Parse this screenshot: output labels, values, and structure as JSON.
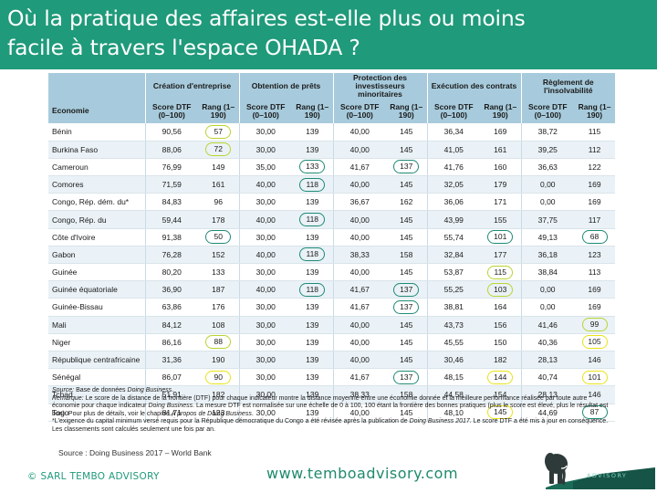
{
  "header": {
    "title_line1": "Où la pratique des affaires est-elle plus ou moins",
    "title_line2": "facile à travers l'espace OHADA ?"
  },
  "table": {
    "groups": [
      "Création d'entreprise",
      "Obtention de prêts",
      "Protection des investisseurs minoritaires",
      "Exécution des contrats",
      "Règlement de l'insolvabilité"
    ],
    "economy_label": "Economie",
    "score_label": "Score DTF (0–100)",
    "rank_label": "Rang (1–190)",
    "rows": [
      {
        "name": "Bénin",
        "cells": [
          [
            "90,56",
            ""
          ],
          [
            "57",
            "lime"
          ],
          [
            "30,00",
            ""
          ],
          [
            "139",
            ""
          ],
          [
            "40,00",
            ""
          ],
          [
            "145",
            ""
          ],
          [
            "36,34",
            ""
          ],
          [
            "169",
            ""
          ],
          [
            "38,72",
            ""
          ],
          [
            "115",
            ""
          ]
        ]
      },
      {
        "name": "Burkina Faso",
        "cells": [
          [
            "88,06",
            ""
          ],
          [
            "72",
            "lime"
          ],
          [
            "30,00",
            ""
          ],
          [
            "139",
            ""
          ],
          [
            "40,00",
            ""
          ],
          [
            "145",
            ""
          ],
          [
            "41,05",
            ""
          ],
          [
            "161",
            ""
          ],
          [
            "39,25",
            ""
          ],
          [
            "112",
            ""
          ]
        ]
      },
      {
        "name": "Cameroun",
        "cells": [
          [
            "76,99",
            ""
          ],
          [
            "149",
            ""
          ],
          [
            "35,00",
            ""
          ],
          [
            "133",
            "teal"
          ],
          [
            "41,67",
            ""
          ],
          [
            "137",
            "teal"
          ],
          [
            "41,76",
            ""
          ],
          [
            "160",
            ""
          ],
          [
            "36,63",
            ""
          ],
          [
            "122",
            ""
          ]
        ]
      },
      {
        "name": "Comores",
        "cells": [
          [
            "71,59",
            ""
          ],
          [
            "161",
            ""
          ],
          [
            "40,00",
            ""
          ],
          [
            "118",
            "teal"
          ],
          [
            "40,00",
            ""
          ],
          [
            "145",
            ""
          ],
          [
            "32,05",
            ""
          ],
          [
            "179",
            ""
          ],
          [
            "0,00",
            ""
          ],
          [
            "169",
            ""
          ]
        ]
      },
      {
        "name": "Congo, Rép. dém. du*",
        "cells": [
          [
            "84,83",
            ""
          ],
          [
            "96",
            ""
          ],
          [
            "30,00",
            ""
          ],
          [
            "139",
            ""
          ],
          [
            "36,67",
            ""
          ],
          [
            "162",
            ""
          ],
          [
            "36,06",
            ""
          ],
          [
            "171",
            ""
          ],
          [
            "0,00",
            ""
          ],
          [
            "169",
            ""
          ]
        ]
      },
      {
        "name": "Congo, Rép. du",
        "cells": [
          [
            "59,44",
            ""
          ],
          [
            "178",
            ""
          ],
          [
            "40,00",
            ""
          ],
          [
            "118",
            "teal"
          ],
          [
            "40,00",
            ""
          ],
          [
            "145",
            ""
          ],
          [
            "43,99",
            ""
          ],
          [
            "155",
            ""
          ],
          [
            "37,75",
            ""
          ],
          [
            "117",
            ""
          ]
        ]
      },
      {
        "name": "Côte d'Ivoire",
        "cells": [
          [
            "91,38",
            ""
          ],
          [
            "50",
            "teal"
          ],
          [
            "30,00",
            ""
          ],
          [
            "139",
            ""
          ],
          [
            "40,00",
            ""
          ],
          [
            "145",
            ""
          ],
          [
            "55,74",
            ""
          ],
          [
            "101",
            "teal"
          ],
          [
            "49,13",
            ""
          ],
          [
            "68",
            "teal"
          ]
        ]
      },
      {
        "name": "Gabon",
        "cells": [
          [
            "76,28",
            ""
          ],
          [
            "152",
            ""
          ],
          [
            "40,00",
            ""
          ],
          [
            "118",
            "teal"
          ],
          [
            "38,33",
            ""
          ],
          [
            "158",
            ""
          ],
          [
            "32,84",
            ""
          ],
          [
            "177",
            ""
          ],
          [
            "36,18",
            ""
          ],
          [
            "123",
            ""
          ]
        ]
      },
      {
        "name": "Guinée",
        "cells": [
          [
            "80,20",
            ""
          ],
          [
            "133",
            ""
          ],
          [
            "30,00",
            ""
          ],
          [
            "139",
            ""
          ],
          [
            "40,00",
            ""
          ],
          [
            "145",
            ""
          ],
          [
            "53,87",
            ""
          ],
          [
            "115",
            "lime"
          ],
          [
            "38,84",
            ""
          ],
          [
            "113",
            ""
          ]
        ]
      },
      {
        "name": "Guinée équatoriale",
        "cells": [
          [
            "36,90",
            ""
          ],
          [
            "187",
            ""
          ],
          [
            "40,00",
            ""
          ],
          [
            "118",
            "teal"
          ],
          [
            "41,67",
            ""
          ],
          [
            "137",
            "teal"
          ],
          [
            "55,25",
            ""
          ],
          [
            "103",
            "lime"
          ],
          [
            "0,00",
            ""
          ],
          [
            "169",
            ""
          ]
        ]
      },
      {
        "name": "Guinée-Bissau",
        "cells": [
          [
            "63,86",
            ""
          ],
          [
            "176",
            ""
          ],
          [
            "30,00",
            ""
          ],
          [
            "139",
            ""
          ],
          [
            "41,67",
            ""
          ],
          [
            "137",
            "teal"
          ],
          [
            "38,81",
            ""
          ],
          [
            "164",
            ""
          ],
          [
            "0,00",
            ""
          ],
          [
            "169",
            ""
          ]
        ]
      },
      {
        "name": "Mali",
        "cells": [
          [
            "84,12",
            ""
          ],
          [
            "108",
            ""
          ],
          [
            "30,00",
            ""
          ],
          [
            "139",
            ""
          ],
          [
            "40,00",
            ""
          ],
          [
            "145",
            ""
          ],
          [
            "43,73",
            ""
          ],
          [
            "156",
            ""
          ],
          [
            "41,46",
            ""
          ],
          [
            "99",
            "lime"
          ]
        ]
      },
      {
        "name": "Niger",
        "cells": [
          [
            "86,16",
            ""
          ],
          [
            "88",
            "lime"
          ],
          [
            "30,00",
            ""
          ],
          [
            "139",
            ""
          ],
          [
            "40,00",
            ""
          ],
          [
            "145",
            ""
          ],
          [
            "45,55",
            ""
          ],
          [
            "150",
            ""
          ],
          [
            "40,36",
            ""
          ],
          [
            "105",
            "yellow"
          ]
        ]
      },
      {
        "name": "République centrafricaine",
        "cells": [
          [
            "31,36",
            ""
          ],
          [
            "190",
            ""
          ],
          [
            "30,00",
            ""
          ],
          [
            "139",
            ""
          ],
          [
            "40,00",
            ""
          ],
          [
            "145",
            ""
          ],
          [
            "30,46",
            ""
          ],
          [
            "182",
            ""
          ],
          [
            "28,13",
            ""
          ],
          [
            "146",
            ""
          ]
        ]
      },
      {
        "name": "Sénégal",
        "cells": [
          [
            "86,07",
            ""
          ],
          [
            "90",
            "yellow"
          ],
          [
            "30,00",
            ""
          ],
          [
            "139",
            ""
          ],
          [
            "41,67",
            ""
          ],
          [
            "137",
            "teal"
          ],
          [
            "48,15",
            ""
          ],
          [
            "144",
            "yellow"
          ],
          [
            "40,74",
            ""
          ],
          [
            "101",
            "yellow"
          ]
        ]
      },
      {
        "name": "Tchad",
        "cells": [
          [
            "51,91",
            ""
          ],
          [
            "182",
            ""
          ],
          [
            "30,00",
            ""
          ],
          [
            "139",
            ""
          ],
          [
            "38,33",
            ""
          ],
          [
            "158",
            ""
          ],
          [
            "44,58",
            ""
          ],
          [
            "154",
            ""
          ],
          [
            "28,13",
            ""
          ],
          [
            "146",
            ""
          ]
        ]
      },
      {
        "name": "Togo",
        "cells": [
          [
            "81,71",
            ""
          ],
          [
            "123",
            ""
          ],
          [
            "30,00",
            ""
          ],
          [
            "139",
            ""
          ],
          [
            "40,00",
            ""
          ],
          [
            "145",
            ""
          ],
          [
            "48,10",
            ""
          ],
          [
            "145",
            "yellow"
          ],
          [
            "44,69",
            ""
          ],
          [
            "87",
            "teal"
          ]
        ]
      }
    ]
  },
  "notes": {
    "source_label": "Source:",
    "source_text": " Base de données ",
    "source_db": "Doing Business",
    "remark_label": "Remarque:",
    "remark_text_1": " Le score de la distance de la frontière (DTF) pour chaque indicateur montre la distance moyenne entre une économie donnée et la meilleure performance réalisée par toute autre économie pour chaque indicateur ",
    "remark_db": "Doing Business",
    "remark_text_2": ". La mesure DTF est normalisée  sur une échelle de 0 à 100, 100 étant la frontière des bonnes pratiques (plus le score est élevé, plus le résultat est bon). Pour plus de détails, voir le chapitre ",
    "remark_chapter": "A propos de Doing Business",
    "remark_end": ".",
    "asterisk_text_1": "*L'exigence du capital minimum versé requis pour la République démocratique du Congo a été révisée après la publication de ",
    "asterisk_db": "Doing Business 2017",
    "asterisk_text_2": ". Le score DTF a été mis à jour en conséquence. Les classements sont calculés seulement une fois par an."
  },
  "footer": {
    "source": "Source : Doing Business 2017 – World Bank",
    "copyright": "© SARL TEMBO ADVISORY",
    "website": "www.temboadvisory.com",
    "logo_name": "TEMBO",
    "logo_sub": "ADVISORY",
    "logo_icon": "elephant-icon",
    "colors": {
      "brand": "#1f9a7a",
      "header_row": "#a7cbdc",
      "circle_lime": "#b9d430",
      "circle_teal": "#1e8a76",
      "circle_yellow": "#e9e21a"
    }
  }
}
